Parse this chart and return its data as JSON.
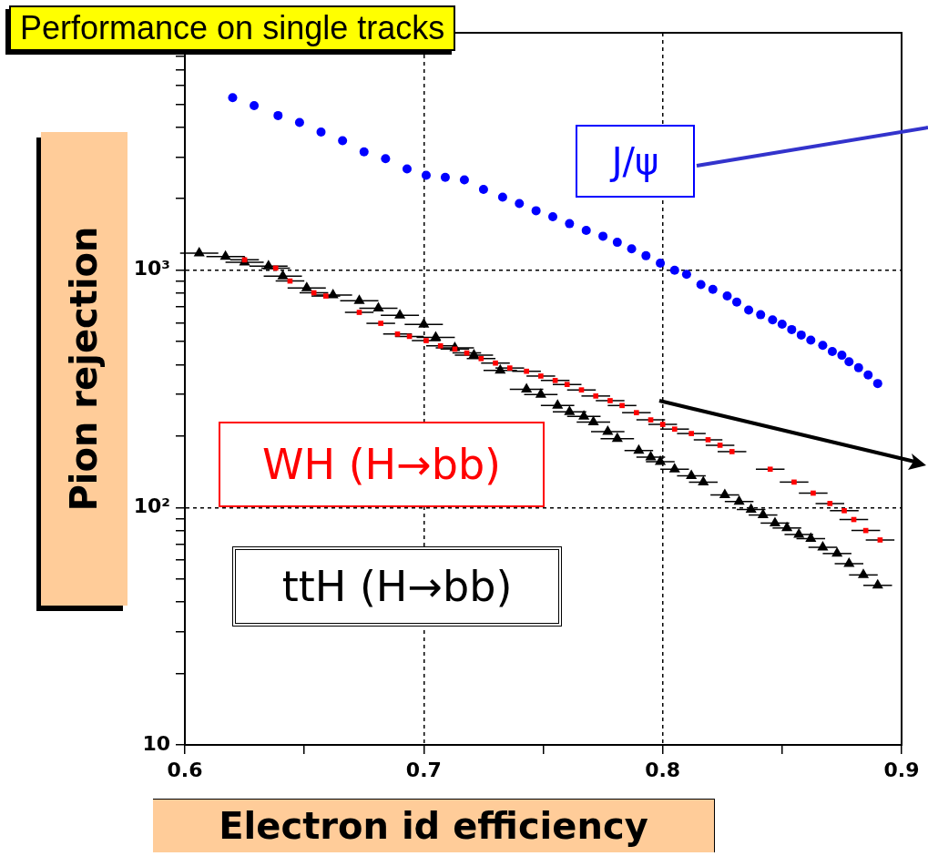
{
  "chart_data": {
    "type": "scatter",
    "title": "Performance on single tracks",
    "xlabel": "Electron id efficiency",
    "ylabel": "Pion rejection",
    "log": "y",
    "grid": true,
    "legend": false,
    "xlim": [
      0.6,
      0.9
    ],
    "xticks": [
      0.6,
      {
        "value": 0.65,
        "label": null
      },
      0.7,
      {
        "value": 0.75,
        "label": null
      },
      0.8,
      {
        "value": 0.85,
        "label": null
      },
      0.9
    ],
    "ylim": [
      10,
      10000
    ],
    "yticks": [
      10,
      {
        "value": 20,
        "label": null
      },
      {
        "value": 30,
        "label": null
      },
      {
        "value": 40,
        "label": null
      },
      {
        "value": 50,
        "label": null
      },
      {
        "value": 60,
        "label": null
      },
      {
        "value": 70,
        "label": null
      },
      {
        "value": 80,
        "label": null
      },
      {
        "value": 90,
        "label": null
      },
      {
        "value": 100,
        "label": "10²"
      },
      {
        "value": 200,
        "label": null
      },
      {
        "value": 300,
        "label": null
      },
      {
        "value": 400,
        "label": null
      },
      {
        "value": 500,
        "label": null
      },
      {
        "value": 600,
        "label": null
      },
      {
        "value": 700,
        "label": null
      },
      {
        "value": 800,
        "label": null
      },
      {
        "value": 900,
        "label": null
      },
      {
        "value": 1000,
        "label": "10³"
      },
      {
        "value": 2000,
        "label": null
      },
      {
        "value": 3000,
        "label": null
      },
      {
        "value": 4000,
        "label": null
      },
      {
        "value": 5000,
        "label": null
      },
      {
        "value": 6000,
        "label": null
      },
      {
        "value": 7000,
        "label": null
      },
      {
        "value": 8000,
        "label": null
      },
      {
        "value": 9000,
        "label": null
      }
    ],
    "series": [
      {
        "name": "J/ψ",
        "color": "#0000ff",
        "marker": "circle",
        "x": [
          0.62,
          0.629,
          0.639,
          0.648,
          0.657,
          0.666,
          0.675,
          0.684,
          0.693,
          0.701,
          0.709,
          0.717,
          0.725,
          0.733,
          0.74,
          0.747,
          0.754,
          0.761,
          0.768,
          0.775,
          0.781,
          0.787,
          0.793,
          0.799,
          0.805,
          0.81,
          0.816,
          0.821,
          0.827,
          0.831,
          0.836,
          0.841,
          0.846,
          0.85,
          0.854,
          0.858,
          0.862,
          0.867,
          0.871,
          0.875,
          0.878,
          0.882,
          0.886,
          0.89
        ],
        "values": [
          5330,
          4930,
          4480,
          4190,
          3820,
          3510,
          3150,
          2950,
          2670,
          2510,
          2460,
          2400,
          2190,
          2030,
          1910,
          1780,
          1680,
          1570,
          1470,
          1390,
          1310,
          1230,
          1150,
          1070,
          1000,
          960,
          869,
          830,
          778,
          733,
          679,
          649,
          617,
          592,
          562,
          533,
          507,
          482,
          454,
          438,
          411,
          388,
          362,
          333
        ]
      },
      {
        "name": "WH (H→bb)",
        "color": "#ff0000",
        "marker": "square",
        "x": [
          0.625,
          0.638,
          0.644,
          0.654,
          0.659,
          0.673,
          0.682,
          0.689,
          0.694,
          0.701,
          0.707,
          0.713,
          0.718,
          0.724,
          0.73,
          0.736,
          0.743,
          0.749,
          0.755,
          0.76,
          0.766,
          0.772,
          0.778,
          0.783,
          0.789,
          0.795,
          0.8,
          0.805,
          0.812,
          0.819,
          0.824,
          0.829,
          0.845,
          0.855,
          0.863,
          0.87,
          0.876,
          0.88,
          0.885,
          0.891
        ],
        "values": [
          1105,
          1020,
          900,
          803,
          778,
          664,
          597,
          538,
          526,
          505,
          480,
          465,
          448,
          424,
          406,
          387,
          375,
          358,
          343,
          330,
          313,
          295,
          282,
          269,
          251,
          234,
          224,
          214,
          205,
          193,
          183,
          172,
          145,
          128,
          115,
          104,
          97,
          89,
          80,
          73
        ],
        "xerrors": [
          0.006,
          0.006,
          0.006,
          0.006,
          0.006,
          0.006,
          0.006,
          0.006,
          0.006,
          0.006,
          0.006,
          0.006,
          0.006,
          0.006,
          0.006,
          0.006,
          0.006,
          0.006,
          0.006,
          0.006,
          0.006,
          0.006,
          0.006,
          0.006,
          0.006,
          0.006,
          0.006,
          0.006,
          0.006,
          0.006,
          0.006,
          0.006,
          0.006,
          0.006,
          0.006,
          0.006,
          0.006,
          0.006,
          0.006,
          0.006
        ]
      },
      {
        "name": "ttH (H→bb)",
        "color": "#000000",
        "marker": "triangle",
        "x": [
          0.606,
          0.617,
          0.625,
          0.635,
          0.641,
          0.651,
          0.662,
          0.673,
          0.681,
          0.69,
          0.7,
          0.705,
          0.713,
          0.721,
          0.732,
          0.743,
          0.749,
          0.756,
          0.761,
          0.767,
          0.771,
          0.777,
          0.781,
          0.79,
          0.795,
          0.799,
          0.805,
          0.812,
          0.817,
          0.826,
          0.832,
          0.837,
          0.842,
          0.847,
          0.852,
          0.857,
          0.862,
          0.867,
          0.873,
          0.878,
          0.884,
          0.89
        ],
        "values": [
          1180,
          1140,
          1080,
          1040,
          943,
          841,
          785,
          743,
          691,
          646,
          591,
          521,
          471,
          438,
          378,
          315,
          299,
          269,
          253,
          242,
          229,
          209,
          195,
          174,
          163,
          156,
          145,
          136,
          128,
          113,
          106,
          98,
          93,
          86,
          82,
          77,
          74,
          68,
          64,
          58,
          52,
          47
        ],
        "xerrors": [
          0.008,
          0.008,
          0.008,
          0.008,
          0.008,
          0.008,
          0.008,
          0.008,
          0.008,
          0.008,
          0.008,
          0.008,
          0.008,
          0.008,
          0.007,
          0.007,
          0.007,
          0.007,
          0.007,
          0.007,
          0.007,
          0.007,
          0.007,
          0.006,
          0.006,
          0.006,
          0.006,
          0.006,
          0.006,
          0.006,
          0.006,
          0.006,
          0.006,
          0.006,
          0.006,
          0.006,
          0.006,
          0.006,
          0.006,
          0.006,
          0.006,
          0.006
        ]
      }
    ]
  }
}
